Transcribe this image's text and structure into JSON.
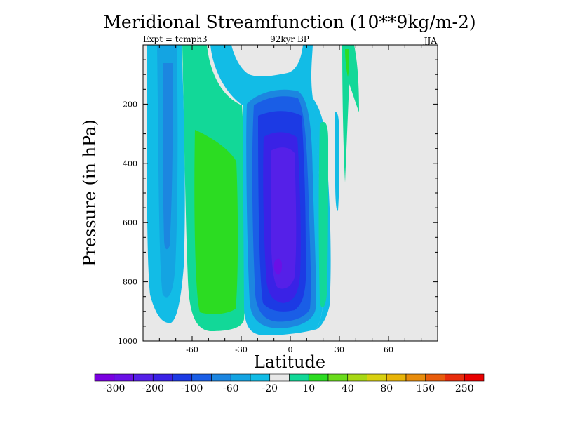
{
  "chart_data": {
    "type": "contour",
    "title": "Meridional Streamfunction (10**9kg/m-2)",
    "subtitle_left": "Expt = tcmph3",
    "subtitle_center": "92kyr BP",
    "subtitle_right": "JJA",
    "xlabel": "Latitude",
    "ylabel": "Pressure (in hPa)",
    "xlim": [
      -90,
      90
    ],
    "ylim": [
      1000,
      0
    ],
    "x_ticks": [
      -60,
      -30,
      0,
      30,
      60
    ],
    "y_ticks": [
      200,
      400,
      600,
      800,
      1000
    ],
    "background_color": "#e8e8e8",
    "colorbar": {
      "tick_labels": [
        "-300",
        "-200",
        "-100",
        "-60",
        "-20",
        "10",
        "40",
        "80",
        "150",
        "250"
      ],
      "colors": [
        "#7a00e0",
        "#6a10e6",
        "#5520e8",
        "#3a22e6",
        "#1c3ae4",
        "#1a5ee6",
        "#1c86e0",
        "#14a4e2",
        "#12bce6",
        "#e8e8e8",
        "#12d898",
        "#2cdc22",
        "#6adc1c",
        "#a8d814",
        "#d8d010",
        "#e8b408",
        "#e88c0c",
        "#e85c0c",
        "#e82c0c",
        "#e80000"
      ]
    },
    "regions": [
      {
        "name": "sh-negative-cell",
        "value": -20,
        "lat_range": [
          -84,
          -63
        ],
        "p_top": 0,
        "p_bottom": 900
      },
      {
        "name": "sh-positive-cell",
        "value": 40,
        "lat_range": [
          -56,
          -29
        ],
        "p_top": 0,
        "p_bottom": 990
      },
      {
        "name": "hadley-cell",
        "value": -200,
        "lat_range": [
          -15,
          7
        ],
        "p_top": 70,
        "p_bottom": 1000
      },
      {
        "name": "nh-positive-strip",
        "value": 10,
        "lat_range": [
          18,
          22
        ],
        "p_top": 250,
        "p_bottom": 940
      },
      {
        "name": "nh-upper-positive",
        "value": 10,
        "lat_range": [
          33,
          41
        ],
        "p_top": 0,
        "p_bottom": 220
      }
    ]
  }
}
